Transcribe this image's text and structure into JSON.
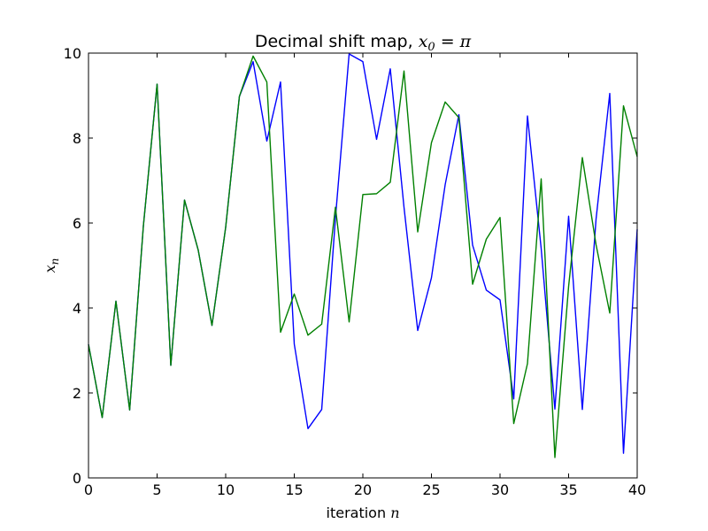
{
  "chart_data": {
    "type": "line",
    "title": "Decimal shift map, ",
    "title_math": "x",
    "title_math_sub": "0",
    "title_math_rest": " = π",
    "xlabel": "iteration ",
    "xlabel_math": "n",
    "ylabel_math": "x",
    "ylabel_math_sub": "n",
    "xlim": [
      0,
      40
    ],
    "ylim": [
      0,
      10
    ],
    "xticks": [
      "0",
      "5",
      "10",
      "15",
      "20",
      "25",
      "30",
      "35",
      "40"
    ],
    "yticks": [
      "0",
      "2",
      "4",
      "6",
      "8",
      "10"
    ],
    "grid": false,
    "x": [
      0,
      1,
      2,
      3,
      4,
      5,
      6,
      7,
      8,
      9,
      10,
      11,
      12,
      13,
      14,
      15,
      16,
      17,
      18,
      19,
      20,
      21,
      22,
      23,
      24,
      25,
      26,
      27,
      28,
      29,
      30,
      31,
      32,
      33,
      34,
      35,
      36,
      37,
      38,
      39,
      40
    ],
    "series": [
      {
        "color": "#0000ff",
        "values": [
          3.14,
          1.42,
          4.16,
          1.6,
          5.93,
          9.27,
          2.65,
          6.54,
          5.36,
          3.59,
          5.9,
          8.98,
          9.8,
          7.93,
          9.32,
          3.15,
          1.16,
          1.61,
          6.11,
          9.98,
          9.8,
          7.97,
          9.63,
          6.37,
          3.47,
          4.71,
          6.9,
          8.55,
          5.48,
          4.42,
          4.19,
          1.86,
          8.52,
          5.4,
          1.62,
          6.16,
          1.61,
          6.09,
          9.05,
          0.58,
          5.85
        ]
      },
      {
        "color": "#008000",
        "values": [
          3.14,
          1.42,
          4.16,
          1.6,
          5.93,
          9.27,
          2.65,
          6.54,
          5.36,
          3.59,
          5.9,
          8.98,
          9.93,
          9.32,
          3.43,
          4.33,
          3.36,
          3.62,
          6.37,
          3.67,
          6.67,
          6.69,
          6.96,
          9.58,
          5.79,
          7.89,
          8.85,
          8.48,
          4.56,
          5.62,
          6.13,
          1.28,
          2.69,
          7.04,
          0.48,
          4.51,
          7.54,
          5.49,
          3.88,
          8.76,
          7.56
        ]
      }
    ]
  }
}
